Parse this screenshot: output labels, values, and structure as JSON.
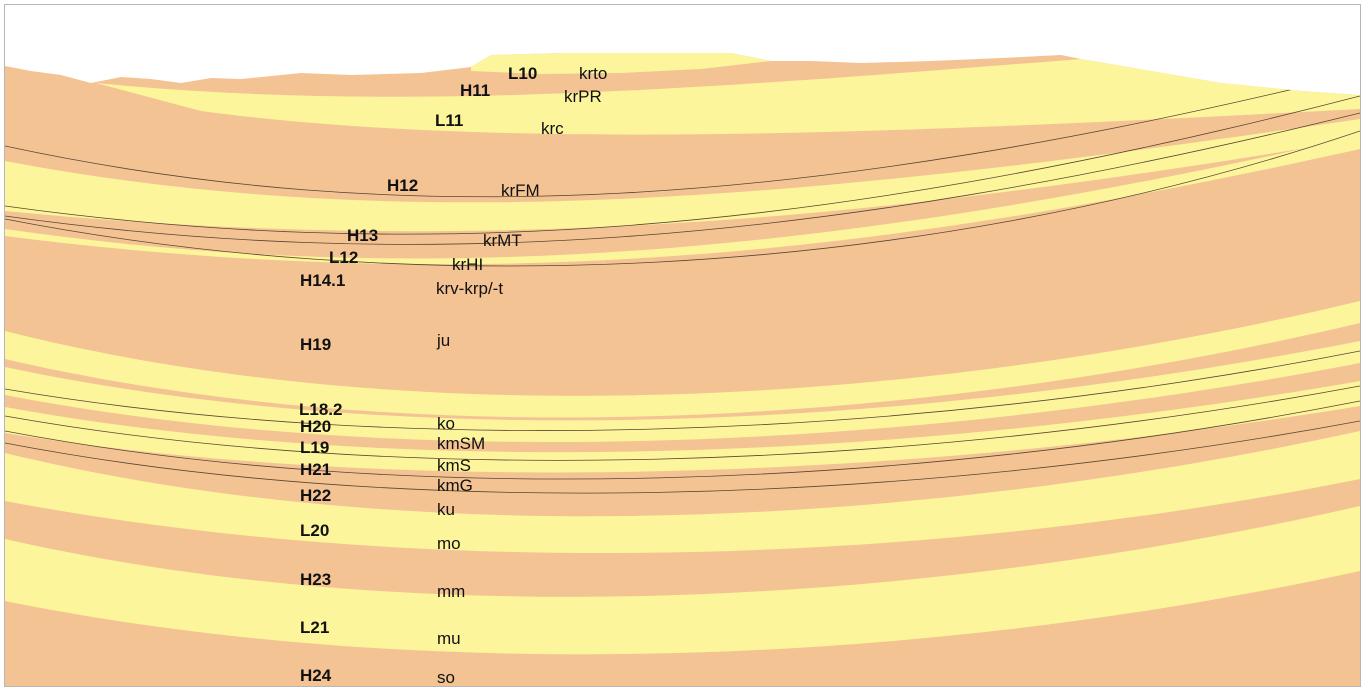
{
  "colors": {
    "tan": "#f4c393",
    "yellow": "#fcf59b",
    "boundary": "#5a4632",
    "border": "#b7b7b7",
    "background": "#ffffff"
  },
  "labels": [
    {
      "code": "L10",
      "name": "krto"
    },
    {
      "code": "H11",
      "name": "krPR"
    },
    {
      "code": "L11",
      "name": "krc"
    },
    {
      "code": "H12",
      "name": "krFM"
    },
    {
      "code": "H13",
      "name": "krMT"
    },
    {
      "code": "L12",
      "name": "krHI"
    },
    {
      "code": "H14.1",
      "name": "krv-krp/-t"
    },
    {
      "code": "H19",
      "name": "ju"
    },
    {
      "code": "L18.2",
      "name": ""
    },
    {
      "code": "H20",
      "name": "ko"
    },
    {
      "code": "L19",
      "name": "kmSM"
    },
    {
      "code": "H21",
      "name": "kmS"
    },
    {
      "code": "H22",
      "name": "kmG"
    },
    {
      "code": "",
      "name": "ku"
    },
    {
      "code": "L20",
      "name": "mo"
    },
    {
      "code": "H23",
      "name": "mm"
    },
    {
      "code": "L21",
      "name": "mu"
    },
    {
      "code": "H24",
      "name": "so"
    }
  ]
}
